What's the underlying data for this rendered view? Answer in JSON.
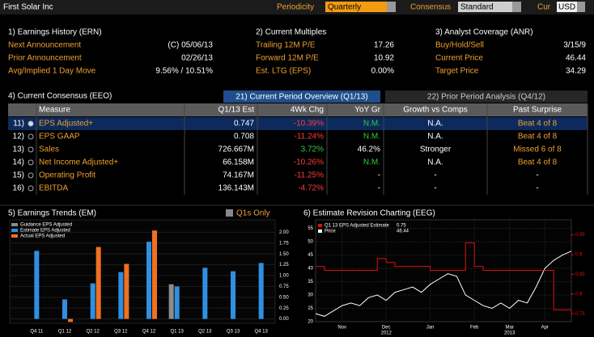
{
  "header": {
    "title": "First Solar Inc",
    "periodicity_label": "Periodicity",
    "periodicity": "Quarterly",
    "consensus_label": "Consensus",
    "consensus": "Standard",
    "cur_label": "Cur",
    "cur": "USD"
  },
  "earnings_history": {
    "title": "1) Earnings History (ERN)",
    "rows": [
      [
        "Next Announcement",
        "(C)  05/06/13"
      ],
      [
        "Prior Announcement",
        "02/26/13"
      ],
      [
        "Avg/Implied 1 Day Move",
        "9.56% / 10.51%"
      ]
    ]
  },
  "current_multiples": {
    "title": "2) Current Multiples",
    "rows": [
      [
        "Trailing 12M P/E",
        "17.26"
      ],
      [
        "Forward 12M P/E",
        "10.92"
      ],
      [
        "Est. LTG (EPS)",
        "0.00%"
      ]
    ]
  },
  "analyst_coverage": {
    "title": "3) Analyst Coverage (ANR)",
    "rows": [
      [
        "Buy/Hold/Sell",
        "3/15/9"
      ],
      [
        "Current Price",
        "46.44"
      ],
      [
        "Target Price",
        "34.29"
      ]
    ]
  },
  "current_consensus": {
    "title": "4) Current Consensus (EEO)",
    "tabs": [
      "21) Current Period Overview (Q1/13)",
      "22) Prior Period Analysis (Q4/12)"
    ],
    "columns": [
      "Measure",
      "Q1/13 Est",
      "4Wk Chg",
      "YoY Gr",
      "Growth vs Comps",
      "Past Surprise"
    ],
    "rows": [
      [
        "11)",
        "EPS Adjusted+",
        "0.747",
        "-10.39%",
        "N.M.",
        "N.A.",
        "Beat 4 of 8"
      ],
      [
        "12)",
        "EPS GAAP",
        "0.708",
        "-11.24%",
        "N.M.",
        "N.A.",
        "Beat 4 of 8"
      ],
      [
        "13)",
        "Sales",
        "726.667M",
        "3.72%",
        "46.2%",
        "Stronger",
        "Missed 6 of 8"
      ],
      [
        "14)",
        "Net Income Adjusted+",
        "66.158M",
        "-10.26%",
        "N.M.",
        "N.A.",
        "Beat 4 of 8"
      ],
      [
        "15)",
        "Operating Profit",
        "74.167M",
        "-11.25%",
        "-",
        "-",
        "-"
      ],
      [
        "16)",
        "EBITDA",
        "136.143M",
        "-4.72%",
        "-",
        "-",
        "-"
      ]
    ],
    "row_colors": [
      [
        "#ffffff",
        "#f0a030",
        "#ffffff",
        "#ff3b3b",
        "#2ecc40",
        "#ffffff",
        "#f0a030"
      ],
      [
        "#ffffff",
        "#f0a030",
        "#ffffff",
        "#ff3b3b",
        "#2ecc40",
        "#ffffff",
        "#f0a030"
      ],
      [
        "#ffffff",
        "#f0a030",
        "#ffffff",
        "#2ecc40",
        "#ffffff",
        "#ffffff",
        "#f0a030"
      ],
      [
        "#ffffff",
        "#f0a030",
        "#ffffff",
        "#ff3b3b",
        "#2ecc40",
        "#ffffff",
        "#f0a030"
      ],
      [
        "#ffffff",
        "#f0a030",
        "#ffffff",
        "#ff3b3b",
        "#ffffff",
        "#ffffff",
        "#ffffff"
      ],
      [
        "#ffffff",
        "#f0a030",
        "#ffffff",
        "#ff3b3b",
        "#ffffff",
        "#ffffff",
        "#ffffff"
      ]
    ]
  },
  "earnings_trends": {
    "title": "5) Earnings Trends (EM)",
    "q1s_only": "Q1s Only",
    "chart": {
      "type": "bar",
      "categories": [
        "Q4 11",
        "Q1 12",
        "Q2 12",
        "Q3 12",
        "Q4 12",
        "Q1 13",
        "Q2 13",
        "Q3 13",
        "Q4 13"
      ],
      "series": [
        {
          "name": "Guidance EPS Adjusted",
          "color": "#8c8c8c",
          "values": [
            null,
            null,
            null,
            null,
            null,
            0.8,
            null,
            null,
            null
          ]
        },
        {
          "name": "Estimate EPS Adjusted",
          "color": "#2f8fe0",
          "values": [
            1.57,
            0.45,
            0.82,
            1.08,
            1.78,
            0.75,
            1.18,
            1.1,
            1.29
          ]
        },
        {
          "name": "Actual EPS Adjusted",
          "color": "#f07020",
          "values": [
            null,
            -0.07,
            1.66,
            1.27,
            2.04,
            null,
            null,
            null,
            null
          ]
        }
      ],
      "ylim": [
        -0.1,
        2.1
      ],
      "yticks": [
        {
          "value": 0,
          "label": "0.00"
        },
        {
          "value": 0.25,
          "label": "0.25"
        },
        {
          "value": 0.5,
          "label": "0.50"
        },
        {
          "value": 0.75,
          "label": "0.75"
        },
        {
          "value": 1,
          "label": "1.00"
        },
        {
          "value": 1.25,
          "label": "1.25"
        },
        {
          "value": 1.5,
          "label": "1.50"
        },
        {
          "value": 1.75,
          "label": "1.75"
        },
        {
          "value": 2,
          "label": "2.00"
        }
      ]
    }
  },
  "estimate_revision": {
    "title": "6) Estimate Revision Charting (EEG)",
    "chart": {
      "type": "line",
      "x": [
        0,
        1,
        2,
        3,
        4,
        5,
        6,
        7,
        8,
        9,
        10,
        11,
        12,
        13,
        14,
        15,
        16,
        17,
        18,
        19,
        20,
        21,
        22,
        23,
        24,
        25,
        26,
        27,
        28,
        29
      ],
      "series": [
        {
          "name": "Price",
          "value_label": "46.44",
          "color": "#ffffff",
          "values": [
            23,
            22,
            24,
            26,
            27,
            26,
            29,
            30,
            28,
            31,
            32,
            33,
            31,
            34,
            36,
            38,
            37,
            30,
            28,
            26,
            25,
            27,
            25,
            28,
            27,
            33,
            40,
            43,
            45,
            46.44
          ]
        },
        {
          "name": "Q1 13 EPS Adjusted Estimate",
          "value_label": "0.75",
          "color": "#e01010",
          "axis": "y2",
          "values": [
            0.87,
            0.86,
            0.86,
            0.86,
            0.86,
            0.86,
            0.86,
            0.89,
            0.88,
            0.87,
            0.87,
            0.87,
            0.87,
            0.86,
            0.86,
            0.86,
            0.86,
            0.93,
            0.87,
            0.86,
            0.86,
            0.86,
            0.86,
            0.86,
            0.86,
            0.86,
            0.86,
            0.76,
            0.76,
            0.75
          ]
        }
      ],
      "ylim": [
        20,
        57
      ],
      "yticks": [
        20,
        25,
        30,
        35,
        40,
        45,
        50,
        55
      ],
      "y2lim": [
        0.73,
        0.98
      ],
      "y2ticks": [
        0.75,
        0.8,
        0.85,
        0.9,
        0.95
      ],
      "xlim": [
        0,
        29
      ],
      "xticks": [
        {
          "value": 3,
          "label": "Nov"
        },
        {
          "value": 8,
          "label": "Dec"
        },
        {
          "value": 13,
          "label": "Jan"
        },
        {
          "value": 18,
          "label": "Feb"
        },
        {
          "value": 22,
          "label": "Mar"
        },
        {
          "value": 26,
          "label": "Apr"
        }
      ],
      "years": [
        {
          "value": 8,
          "label": "2012"
        },
        {
          "value": 22,
          "label": "2013"
        }
      ]
    }
  }
}
